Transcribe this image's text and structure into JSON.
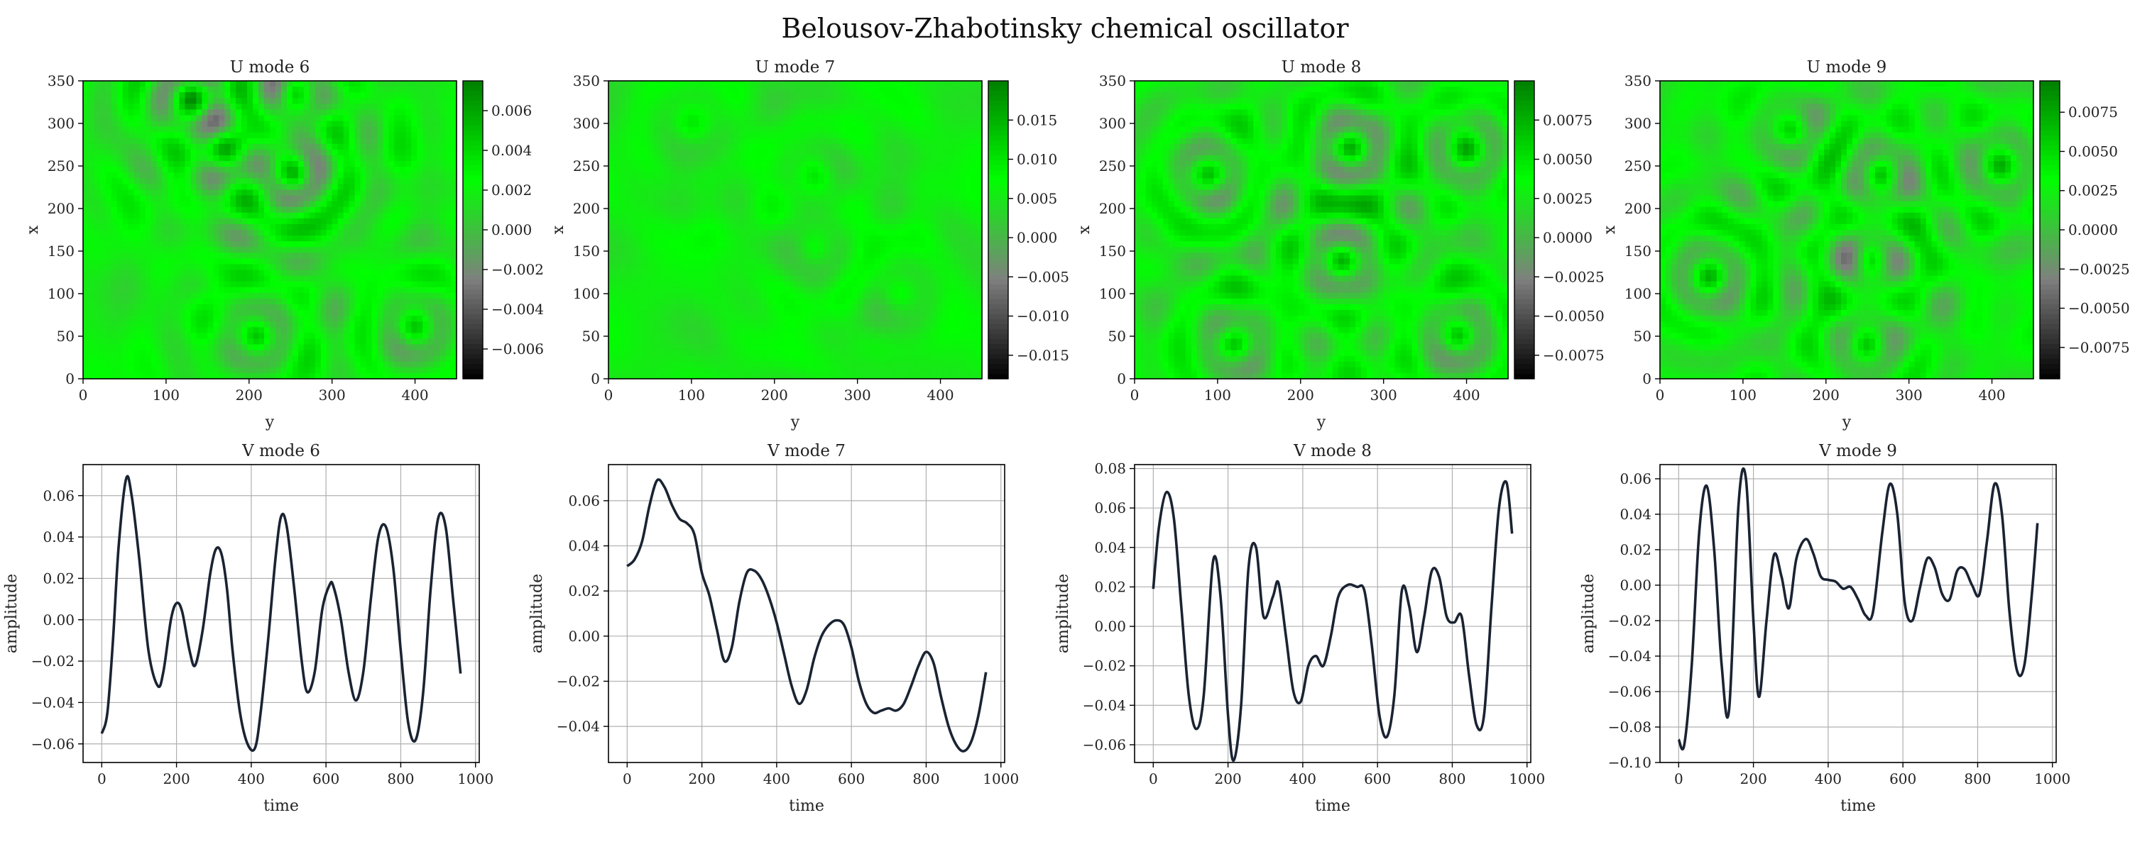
{
  "figure": {
    "title": "Belousov-Zhabotinsky chemical oscillator"
  },
  "chart_data": [
    {
      "type": "heatmap",
      "title": "U mode 6",
      "xlabel": "y",
      "ylabel": "x",
      "xlim": [
        0,
        450
      ],
      "ylim": [
        0,
        350
      ],
      "xticks": [
        0,
        100,
        200,
        300,
        400
      ],
      "yticks": [
        0,
        50,
        100,
        150,
        200,
        250,
        300,
        350
      ],
      "colorbar": {
        "range": [
          -0.0075,
          0.0075
        ],
        "ticks": [
          -0.006,
          -0.004,
          -0.002,
          0.0,
          0.002,
          0.004,
          0.006
        ],
        "tick_labels": [
          "−0.006",
          "−0.004",
          "−0.002",
          "0.000",
          "0.002",
          "0.004",
          "0.006"
        ]
      },
      "colormap": [
        "#000000",
        "#7f7f7f",
        "#00ff00",
        "#007f00"
      ],
      "rings": [
        [
          255,
          240,
          1.2
        ],
        [
          255,
          335,
          0.9
        ],
        [
          130,
          330,
          1.0
        ],
        [
          170,
          270,
          0.9
        ],
        [
          400,
          60,
          0.8
        ],
        [
          210,
          50,
          0.7
        ]
      ]
    },
    {
      "type": "heatmap",
      "title": "U mode 7",
      "xlabel": "y",
      "ylabel": "x",
      "xlim": [
        0,
        450
      ],
      "ylim": [
        0,
        350
      ],
      "xticks": [
        0,
        100,
        200,
        300,
        400
      ],
      "yticks": [
        0,
        50,
        100,
        150,
        200,
        250,
        300,
        350
      ],
      "colorbar": {
        "range": [
          -0.018,
          0.02
        ],
        "ticks": [
          -0.015,
          -0.01,
          -0.005,
          0.0,
          0.005,
          0.01,
          0.015
        ],
        "tick_labels": [
          "−0.015",
          "−0.010",
          "−0.005",
          "0.000",
          "0.005",
          "0.010",
          "0.015"
        ]
      },
      "colormap": [
        "#000000",
        "#7f7f7f",
        "#00ff00",
        "#007f00"
      ],
      "rings": [
        [
          250,
          240,
          0.35
        ],
        [
          250,
          150,
          0.3
        ],
        [
          100,
          300,
          0.3
        ],
        [
          350,
          100,
          0.3
        ]
      ]
    },
    {
      "type": "heatmap",
      "title": "U mode 8",
      "xlabel": "y",
      "ylabel": "x",
      "xlim": [
        0,
        450
      ],
      "ylim": [
        0,
        350
      ],
      "xticks": [
        0,
        100,
        200,
        300,
        400
      ],
      "yticks": [
        0,
        50,
        100,
        150,
        200,
        250,
        300,
        350
      ],
      "colorbar": {
        "range": [
          -0.009,
          0.01
        ],
        "ticks": [
          -0.0075,
          -0.005,
          -0.0025,
          0.0,
          0.0025,
          0.005,
          0.0075
        ],
        "tick_labels": [
          "−0.0075",
          "−0.0050",
          "−0.0025",
          "0.0000",
          "0.0025",
          "0.0050",
          "0.0075"
        ]
      },
      "colormap": [
        "#000000",
        "#7f7f7f",
        "#00ff00",
        "#007f00"
      ],
      "rings": [
        [
          250,
          140,
          1.0
        ],
        [
          260,
          270,
          1.0
        ],
        [
          90,
          240,
          0.9
        ],
        [
          390,
          50,
          0.9
        ],
        [
          400,
          270,
          0.8
        ],
        [
          120,
          40,
          0.8
        ]
      ]
    },
    {
      "type": "heatmap",
      "title": "U mode 9",
      "xlabel": "y",
      "ylabel": "x",
      "xlim": [
        0,
        450
      ],
      "ylim": [
        0,
        350
      ],
      "xticks": [
        0,
        100,
        200,
        300,
        400
      ],
      "yticks": [
        0,
        50,
        100,
        150,
        200,
        250,
        300,
        350
      ],
      "colorbar": {
        "range": [
          -0.0095,
          0.0095
        ],
        "ticks": [
          -0.0075,
          -0.005,
          -0.0025,
          0.0,
          0.0025,
          0.005,
          0.0075
        ],
        "tick_labels": [
          "−0.0075",
          "−0.0050",
          "−0.0025",
          "0.0000",
          "0.0025",
          "0.0050",
          "0.0075"
        ]
      },
      "colormap": [
        "#000000",
        "#7f7f7f",
        "#00ff00",
        "#007f00"
      ],
      "rings": [
        [
          265,
          240,
          1.0
        ],
        [
          255,
          140,
          1.0
        ],
        [
          60,
          120,
          0.9
        ],
        [
          410,
          250,
          0.8
        ],
        [
          250,
          40,
          0.8
        ],
        [
          160,
          290,
          0.7
        ]
      ]
    },
    {
      "type": "line",
      "title": "V mode 6",
      "xlabel": "time",
      "ylabel": "amplitude",
      "xlim": [
        -50,
        1010
      ],
      "ylim": [
        -0.069,
        0.075
      ],
      "xticks": [
        0,
        200,
        400,
        600,
        800,
        1000
      ],
      "yticks": [
        -0.06,
        -0.04,
        -0.02,
        0.0,
        0.02,
        0.04,
        0.06
      ],
      "ytick_labels": [
        "−0.06",
        "−0.04",
        "−0.02",
        "0.00",
        "0.02",
        "0.04",
        "0.06"
      ],
      "grid": true,
      "line_color": "#1a2332",
      "x": [
        0,
        15,
        30,
        45,
        65,
        80,
        100,
        125,
        150,
        165,
        185,
        200,
        215,
        235,
        250,
        270,
        290,
        305,
        320,
        335,
        350,
        370,
        390,
        410,
        425,
        445,
        465,
        480,
        495,
        515,
        535,
        550,
        570,
        590,
        610,
        620,
        640,
        660,
        680,
        700,
        720,
        740,
        760,
        780,
        800,
        820,
        840,
        860,
        880,
        900,
        920,
        940,
        960
      ],
      "values": [
        -0.055,
        -0.045,
        -0.01,
        0.035,
        0.068,
        0.06,
        0.03,
        -0.015,
        -0.032,
        -0.025,
        0.0,
        0.008,
        0.004,
        -0.015,
        -0.022,
        -0.005,
        0.022,
        0.034,
        0.032,
        0.015,
        -0.015,
        -0.045,
        -0.06,
        -0.062,
        -0.045,
        -0.01,
        0.03,
        0.05,
        0.045,
        0.015,
        -0.02,
        -0.035,
        -0.025,
        0.005,
        0.017,
        0.016,
        0.0,
        -0.025,
        -0.039,
        -0.025,
        0.01,
        0.04,
        0.045,
        0.025,
        -0.015,
        -0.05,
        -0.058,
        -0.035,
        0.015,
        0.049,
        0.045,
        0.01,
        -0.026
      ]
    },
    {
      "type": "line",
      "title": "V mode 7",
      "xlabel": "time",
      "ylabel": "amplitude",
      "xlim": [
        -50,
        1010
      ],
      "ylim": [
        -0.056,
        0.076
      ],
      "xticks": [
        0,
        200,
        400,
        600,
        800,
        1000
      ],
      "yticks": [
        -0.04,
        -0.02,
        0.0,
        0.02,
        0.04,
        0.06
      ],
      "ytick_labels": [
        "−0.04",
        "−0.02",
        "0.00",
        "0.02",
        "0.04",
        "0.06"
      ],
      "grid": true,
      "line_color": "#1a2332",
      "x": [
        0,
        20,
        40,
        60,
        80,
        100,
        120,
        140,
        160,
        180,
        200,
        220,
        240,
        260,
        280,
        300,
        320,
        340,
        360,
        380,
        400,
        420,
        440,
        460,
        480,
        500,
        520,
        540,
        560,
        580,
        600,
        620,
        640,
        660,
        680,
        700,
        720,
        740,
        760,
        780,
        800,
        820,
        840,
        860,
        880,
        900,
        920,
        940,
        960
      ],
      "values": [
        0.031,
        0.034,
        0.042,
        0.058,
        0.069,
        0.066,
        0.058,
        0.052,
        0.05,
        0.045,
        0.028,
        0.018,
        0.003,
        -0.011,
        -0.005,
        0.015,
        0.028,
        0.029,
        0.025,
        0.017,
        0.006,
        -0.008,
        -0.022,
        -0.03,
        -0.024,
        -0.01,
        0.0,
        0.005,
        0.007,
        0.005,
        -0.005,
        -0.02,
        -0.03,
        -0.034,
        -0.033,
        -0.032,
        -0.033,
        -0.03,
        -0.022,
        -0.013,
        -0.007,
        -0.012,
        -0.027,
        -0.04,
        -0.048,
        -0.051,
        -0.047,
        -0.035,
        -0.016
      ]
    },
    {
      "type": "line",
      "title": "V mode 8",
      "xlabel": "time",
      "ylabel": "amplitude",
      "xlim": [
        -50,
        1010
      ],
      "ylim": [
        -0.069,
        0.082
      ],
      "xticks": [
        0,
        200,
        400,
        600,
        800,
        1000
      ],
      "yticks": [
        -0.06,
        -0.04,
        -0.02,
        0.0,
        0.02,
        0.04,
        0.06,
        0.08
      ],
      "ytick_labels": [
        "−0.06",
        "−0.04",
        "−0.02",
        "0.00",
        "0.02",
        "0.04",
        "0.06",
        "0.08"
      ],
      "grid": true,
      "line_color": "#1a2332",
      "x": [
        0,
        15,
        35,
        55,
        75,
        95,
        115,
        135,
        160,
        180,
        200,
        215,
        235,
        255,
        275,
        295,
        320,
        335,
        355,
        375,
        395,
        415,
        435,
        455,
        475,
        495,
        520,
        545,
        565,
        585,
        605,
        625,
        645,
        665,
        685,
        705,
        725,
        745,
        765,
        785,
        805,
        825,
        845,
        865,
        885,
        905,
        925,
        945,
        960
      ],
      "values": [
        0.019,
        0.05,
        0.068,
        0.055,
        0.01,
        -0.035,
        -0.052,
        -0.035,
        0.033,
        0.015,
        -0.045,
        -0.068,
        -0.04,
        0.03,
        0.04,
        0.005,
        0.015,
        0.022,
        -0.005,
        -0.033,
        -0.038,
        -0.02,
        -0.015,
        -0.02,
        -0.005,
        0.015,
        0.021,
        0.02,
        0.018,
        -0.01,
        -0.045,
        -0.056,
        -0.035,
        0.018,
        0.01,
        -0.013,
        0.005,
        0.028,
        0.025,
        0.005,
        0.002,
        0.005,
        -0.025,
        -0.05,
        -0.045,
        0.01,
        0.06,
        0.073,
        0.047
      ]
    },
    {
      "type": "line",
      "title": "V mode 9",
      "xlabel": "time",
      "ylabel": "amplitude",
      "xlim": [
        -50,
        1010
      ],
      "ylim": [
        -0.1,
        0.068
      ],
      "xticks": [
        0,
        200,
        400,
        600,
        800,
        1000
      ],
      "yticks": [
        -0.1,
        -0.08,
        -0.06,
        -0.04,
        -0.02,
        0.0,
        0.02,
        0.04,
        0.06
      ],
      "ytick_labels": [
        "−0.10",
        "−0.08",
        "−0.06",
        "−0.04",
        "−0.02",
        "0.00",
        "0.02",
        "0.04",
        "0.06"
      ],
      "grid": true,
      "line_color": "#1a2332",
      "x": [
        0,
        15,
        35,
        55,
        75,
        95,
        115,
        135,
        160,
        180,
        200,
        215,
        235,
        255,
        275,
        295,
        315,
        340,
        360,
        380,
        400,
        420,
        440,
        460,
        480,
        500,
        520,
        545,
        565,
        585,
        605,
        625,
        645,
        665,
        685,
        705,
        725,
        745,
        765,
        785,
        805,
        825,
        845,
        865,
        885,
        905,
        925,
        945,
        960
      ],
      "values": [
        -0.087,
        -0.09,
        -0.045,
        0.03,
        0.056,
        0.02,
        -0.045,
        -0.07,
        0.045,
        0.06,
        -0.02,
        -0.063,
        -0.02,
        0.017,
        0.005,
        -0.013,
        0.015,
        0.026,
        0.018,
        0.005,
        0.003,
        0.002,
        -0.002,
        -0.001,
        -0.008,
        -0.017,
        -0.015,
        0.03,
        0.057,
        0.04,
        -0.01,
        -0.02,
        -0.002,
        0.015,
        0.01,
        -0.005,
        -0.008,
        0.008,
        0.009,
        0.0,
        -0.005,
        0.025,
        0.057,
        0.04,
        -0.015,
        -0.048,
        -0.045,
        -0.005,
        0.035
      ]
    }
  ]
}
